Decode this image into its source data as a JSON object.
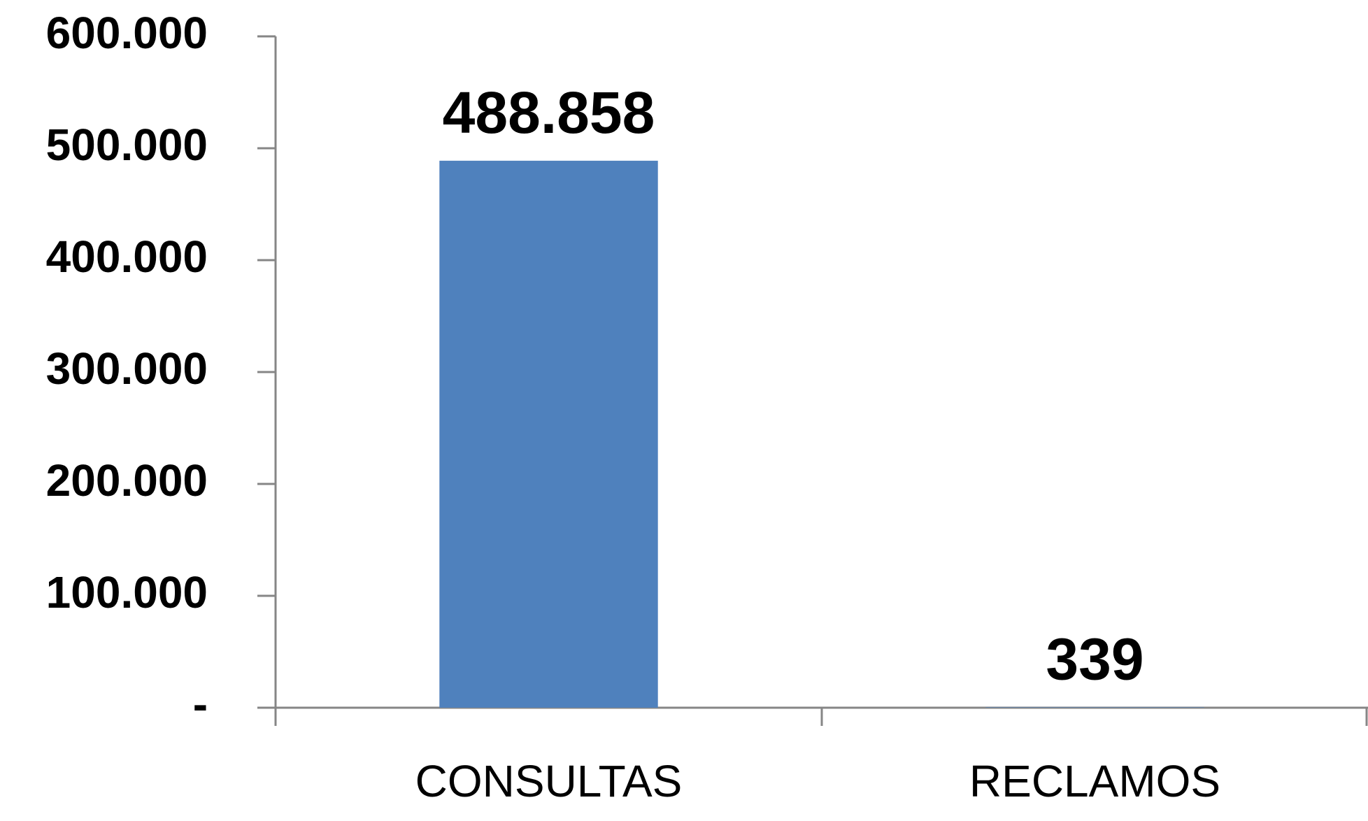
{
  "chart_data": {
    "type": "bar",
    "categories": [
      "CONSULTAS",
      "RECLAMOS"
    ],
    "values": [
      488858,
      339
    ],
    "value_labels": [
      "488.858",
      "339"
    ],
    "color": "#4f81bd",
    "ylim": [
      0,
      600000
    ],
    "yticks": [
      {
        "value": 0,
        "label": "-"
      },
      {
        "value": 100000,
        "label": "100.000"
      },
      {
        "value": 200000,
        "label": "200.000"
      },
      {
        "value": 300000,
        "label": "300.000"
      },
      {
        "value": 400000,
        "label": "400.000"
      },
      {
        "value": 500000,
        "label": "500.000"
      },
      {
        "value": 600000,
        "label": "600.000"
      }
    ],
    "grid": false
  }
}
